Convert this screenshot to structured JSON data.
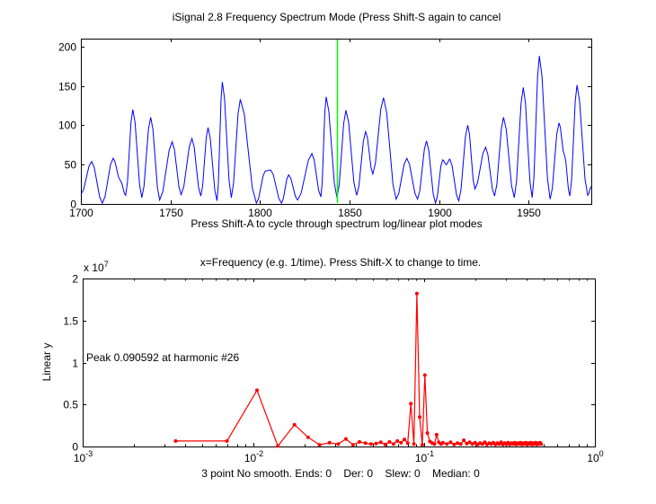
{
  "window": {
    "background": "#ffffff",
    "text_color": "#000000",
    "axis_color": "#000000"
  },
  "chart_data": [
    {
      "id": "signal-segment",
      "type": "line",
      "title": "iSignal 2.8 Frequency Spectrum Mode (Press Shift-S again to cancel",
      "xlabel": "Press Shift-A to cycle through spectrum log/linear plot modes",
      "ylabel": "",
      "x_scale": "linear",
      "xlim": [
        1700,
        1985
      ],
      "ylim": [
        0,
        210
      ],
      "xticks": [
        1700,
        1750,
        1800,
        1850,
        1900,
        1950
      ],
      "yticks": [
        0,
        50,
        100,
        150,
        200
      ],
      "grid": false,
      "legend": null,
      "line_color": "#0000ff",
      "cursor": {
        "x": 1843,
        "color": "#00ff00"
      },
      "points": [
        [
          1700,
          12
        ],
        [
          1706,
          54
        ],
        [
          1712,
          1
        ],
        [
          1718,
          58
        ],
        [
          1722,
          30
        ],
        [
          1725,
          11
        ],
        [
          1729,
          120
        ],
        [
          1734,
          8
        ],
        [
          1739,
          110
        ],
        [
          1744,
          5
        ],
        [
          1751,
          79
        ],
        [
          1756,
          12
        ],
        [
          1762,
          83
        ],
        [
          1767,
          10
        ],
        [
          1771,
          97
        ],
        [
          1776,
          4
        ],
        [
          1779,
          155
        ],
        [
          1784,
          8
        ],
        [
          1789,
          133
        ],
        [
          1798,
          1
        ],
        [
          1803,
          42
        ],
        [
          1806,
          43
        ],
        [
          1812,
          1
        ],
        [
          1816,
          37
        ],
        [
          1821,
          5
        ],
        [
          1829,
          64
        ],
        [
          1834,
          9
        ],
        [
          1837,
          136
        ],
        [
          1843,
          8
        ],
        [
          1848,
          119
        ],
        [
          1854,
          11
        ],
        [
          1859,
          92
        ],
        [
          1863,
          38
        ],
        [
          1869,
          135
        ],
        [
          1876,
          6
        ],
        [
          1882,
          58
        ],
        [
          1888,
          6
        ],
        [
          1893,
          80
        ],
        [
          1898,
          1
        ],
        [
          1902,
          56
        ],
        [
          1904,
          50
        ],
        [
          1906,
          57
        ],
        [
          1911,
          4
        ],
        [
          1916,
          100
        ],
        [
          1920,
          19
        ],
        [
          1926,
          72
        ],
        [
          1931,
          10
        ],
        [
          1936,
          110
        ],
        [
          1942,
          8
        ],
        [
          1947,
          148
        ],
        [
          1952,
          8
        ],
        [
          1956,
          188
        ],
        [
          1962,
          6
        ],
        [
          1967,
          103
        ],
        [
          1970,
          62
        ],
        [
          1973,
          10
        ],
        [
          1977,
          151
        ],
        [
          1983,
          11
        ],
        [
          1985,
          22
        ]
      ]
    },
    {
      "id": "frequency-spectrum",
      "type": "line",
      "title": "x=Frequency (e.g. 1/time). Press Shift-X to change to time.",
      "xlabel": "3 point No smooth. Ends: 0    Der: 0    Slew: 0    Median: 0",
      "ylabel": "Linear y",
      "annotation": "Peak 0.090592 at harmonic #26",
      "y_multiplier_prefix": "x 10",
      "y_multiplier_exponent": "7",
      "y_unit": "1e7",
      "x_scale": "log",
      "xlim": [
        0.001,
        1
      ],
      "ylim": [
        0,
        2
      ],
      "xtick_exponents": [
        -3,
        -2,
        -1,
        0
      ],
      "yticks": [
        0,
        0.5,
        1,
        1.5,
        2
      ],
      "grid": false,
      "legend": null,
      "line_color": "#ff0000",
      "marker": "dot",
      "points": [
        [
          0.0035,
          0.065
        ],
        [
          0.007,
          0.065
        ],
        [
          0.0105,
          0.67
        ],
        [
          0.0139,
          0.005
        ],
        [
          0.0174,
          0.26
        ],
        [
          0.0209,
          0.11
        ],
        [
          0.0244,
          0.02
        ],
        [
          0.0279,
          0.045
        ],
        [
          0.0314,
          0.03
        ],
        [
          0.0348,
          0.09
        ],
        [
          0.0383,
          0.02
        ],
        [
          0.0418,
          0.055
        ],
        [
          0.0453,
          0.04
        ],
        [
          0.0488,
          0.03
        ],
        [
          0.0523,
          0.035
        ],
        [
          0.0557,
          0.05
        ],
        [
          0.0592,
          0.025
        ],
        [
          0.0627,
          0.055
        ],
        [
          0.0662,
          0.03
        ],
        [
          0.0697,
          0.065
        ],
        [
          0.0732,
          0.045
        ],
        [
          0.0766,
          0.085
        ],
        [
          0.0801,
          0.04
        ],
        [
          0.0836,
          0.51
        ],
        [
          0.0871,
          0.03
        ],
        [
          0.0906,
          1.82
        ],
        [
          0.0941,
          0.35
        ],
        [
          0.0975,
          0.02
        ],
        [
          0.101,
          0.85
        ],
        [
          0.1045,
          0.16
        ],
        [
          0.108,
          0.06
        ],
        [
          0.1115,
          0.04
        ],
        [
          0.115,
          0.03
        ],
        [
          0.1184,
          0.14
        ],
        [
          0.1219,
          0.05
        ],
        [
          0.1254,
          0.03
        ],
        [
          0.1289,
          0.045
        ],
        [
          0.1359,
          0.03
        ],
        [
          0.1428,
          0.05
        ],
        [
          0.1498,
          0.025
        ],
        [
          0.1568,
          0.04
        ],
        [
          0.1638,
          0.03
        ],
        [
          0.1707,
          0.075
        ],
        [
          0.1777,
          0.035
        ],
        [
          0.1847,
          0.05
        ],
        [
          0.1916,
          0.03
        ],
        [
          0.1986,
          0.045
        ],
        [
          0.2056,
          0.025
        ],
        [
          0.2125,
          0.04
        ],
        [
          0.2195,
          0.03
        ],
        [
          0.2265,
          0.05
        ],
        [
          0.2334,
          0.025
        ],
        [
          0.2404,
          0.04
        ],
        [
          0.2474,
          0.03
        ],
        [
          0.2543,
          0.045
        ],
        [
          0.2613,
          0.025
        ],
        [
          0.2683,
          0.04
        ],
        [
          0.2752,
          0.03
        ],
        [
          0.2822,
          0.05
        ],
        [
          0.2892,
          0.025
        ],
        [
          0.2961,
          0.04
        ],
        [
          0.3031,
          0.03
        ],
        [
          0.3101,
          0.045
        ],
        [
          0.317,
          0.025
        ],
        [
          0.324,
          0.04
        ],
        [
          0.331,
          0.03
        ],
        [
          0.338,
          0.045
        ],
        [
          0.3449,
          0.025
        ],
        [
          0.3519,
          0.04
        ],
        [
          0.3589,
          0.03
        ],
        [
          0.3658,
          0.045
        ],
        [
          0.3728,
          0.025
        ],
        [
          0.3798,
          0.04
        ],
        [
          0.3867,
          0.03
        ],
        [
          0.3937,
          0.045
        ],
        [
          0.4007,
          0.025
        ],
        [
          0.4076,
          0.04
        ],
        [
          0.4146,
          0.03
        ],
        [
          0.4216,
          0.045
        ],
        [
          0.4285,
          0.025
        ],
        [
          0.4355,
          0.04
        ],
        [
          0.4425,
          0.03
        ],
        [
          0.4495,
          0.045
        ],
        [
          0.4564,
          0.025
        ],
        [
          0.4634,
          0.04
        ],
        [
          0.4704,
          0.03
        ],
        [
          0.4773,
          0.045
        ],
        [
          0.4843,
          0.03
        ]
      ]
    }
  ]
}
